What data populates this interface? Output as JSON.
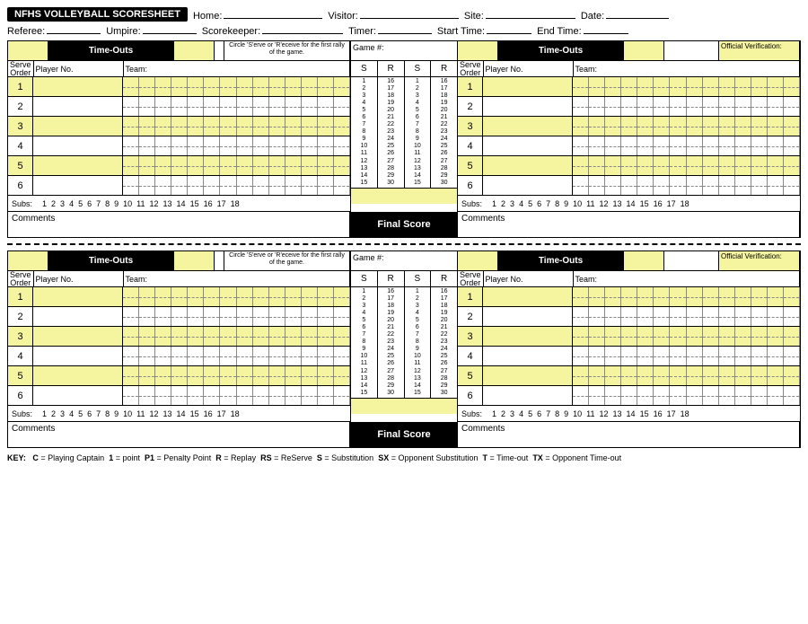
{
  "title": "NFHS VOLLEYBALL SCORESHEET",
  "header": {
    "home": "Home:",
    "visitor": "Visitor:",
    "site": "Site:",
    "date": "Date:",
    "referee": "Referee:",
    "umpire": "Umpire:",
    "scorekeeper": "Scorekeeper:",
    "timer": "Timer:",
    "start_time": "Start Time:",
    "end_time": "End Time:"
  },
  "labels": {
    "timeouts": "Time-Outs",
    "circle_note": "Circle 'S'erve or 'R'eceive for the first rally of the game.",
    "official_verification": "Official Verification:",
    "serve_order": "Serve Order",
    "player_no": "Player No.",
    "team": "Team:",
    "game_no": "Game #:",
    "subs": "Subs:",
    "comments": "Comments",
    "final_score": "Final Score",
    "S": "S",
    "R": "R"
  },
  "serve_orders": [
    1,
    2,
    3,
    4,
    5,
    6
  ],
  "subs_numbers": [
    1,
    2,
    3,
    4,
    5,
    6,
    7,
    8,
    9,
    10,
    11,
    12,
    13,
    14,
    15,
    16,
    17,
    18
  ],
  "score_cols_low": [
    1,
    2,
    3,
    4,
    5,
    6,
    7,
    8,
    9,
    10,
    11,
    12,
    13,
    14,
    15
  ],
  "score_cols_high": [
    16,
    17,
    18,
    19,
    20,
    21,
    22,
    23,
    24,
    25,
    26,
    27,
    28,
    29,
    30
  ],
  "grid_cols": 14,
  "key": {
    "prefix": "KEY:",
    "items": [
      {
        "k": "C",
        "v": "Playing Captain"
      },
      {
        "k": "1",
        "v": "point"
      },
      {
        "k": "P1",
        "v": "Penalty Point"
      },
      {
        "k": "R",
        "v": "Replay"
      },
      {
        "k": "RS",
        "v": "ReServe"
      },
      {
        "k": "S",
        "v": "Substitution"
      },
      {
        "k": "SX",
        "v": "Opponent Substitution"
      },
      {
        "k": "T",
        "v": "Time-out"
      },
      {
        "k": "TX",
        "v": "Opponent Time-out"
      }
    ]
  },
  "colors": {
    "highlight": "#f5f5a0",
    "black": "#000000"
  }
}
